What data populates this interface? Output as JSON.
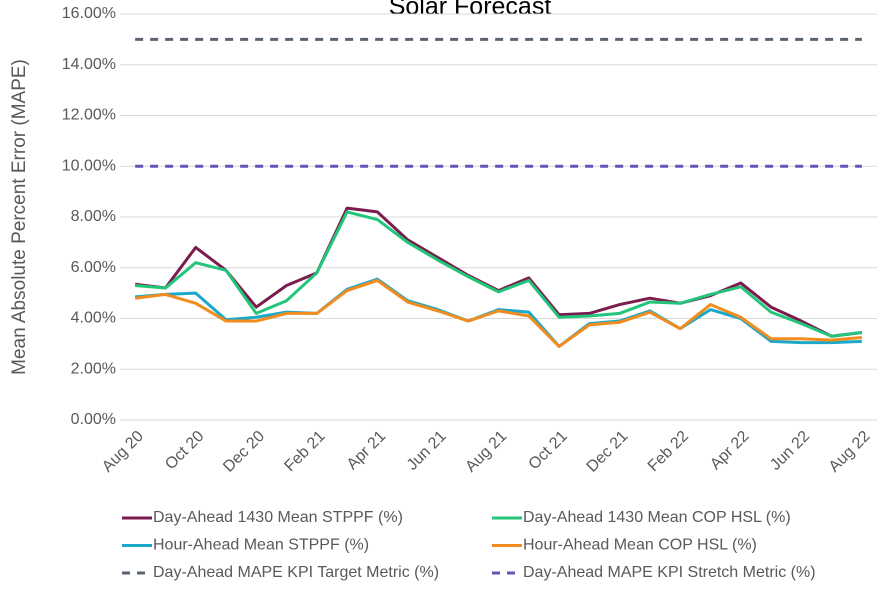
{
  "chart_data": {
    "type": "line",
    "title": "Solar Forecast",
    "y_label": "Mean Absolute Percent Error (MAPE)",
    "categories": [
      "Aug 20",
      null,
      "Oct 20",
      null,
      "Dec 20",
      null,
      "Feb 21",
      null,
      "Apr 21",
      null,
      "Jun 21",
      null,
      "Aug 21",
      null,
      "Oct 21",
      null,
      "Dec 21",
      null,
      "Feb 22",
      null,
      "Apr 22",
      null,
      "Jun 22",
      null,
      "Aug 22"
    ],
    "ylim": [
      0,
      16
    ],
    "yticks": [
      {
        "value": 0,
        "label": "0.00%"
      },
      {
        "value": 2,
        "label": "2.00%"
      },
      {
        "value": 4,
        "label": "4.00%"
      },
      {
        "value": 6,
        "label": "6.00%"
      },
      {
        "value": 8,
        "label": "8.00%"
      },
      {
        "value": 10,
        "label": "10.00%"
      },
      {
        "value": 12,
        "label": "12.00%"
      },
      {
        "value": 14,
        "label": "14.00%"
      },
      {
        "value": 16,
        "label": "16.00%"
      }
    ],
    "grid": true,
    "legend": "bottom",
    "series": [
      {
        "name": "Day-Ahead 1430 Mean STPPF (%)",
        "color": "#7b1c4e",
        "dashed": false,
        "values": [
          5.35,
          5.2,
          6.8,
          5.9,
          4.45,
          5.3,
          5.8,
          8.35,
          8.2,
          7.1,
          6.4,
          5.7,
          5.1,
          5.6,
          4.15,
          4.2,
          4.55,
          4.8,
          4.6,
          4.9,
          5.4,
          4.45,
          3.9,
          3.3,
          3.45
        ]
      },
      {
        "name": "Day-Ahead 1430 Mean COP HSL (%)",
        "color": "#22c57a",
        "dashed": false,
        "values": [
          5.3,
          5.2,
          6.2,
          5.9,
          4.2,
          4.7,
          5.8,
          8.2,
          7.9,
          7.0,
          6.3,
          5.65,
          5.05,
          5.5,
          4.05,
          4.1,
          4.2,
          4.65,
          4.6,
          4.95,
          5.25,
          4.25,
          3.8,
          3.3,
          3.45
        ]
      },
      {
        "name": "Hour-Ahead Mean STPPF (%)",
        "color": "#1ba8c9",
        "dashed": false,
        "values": [
          4.85,
          4.95,
          5.0,
          3.95,
          4.05,
          4.25,
          4.2,
          5.15,
          5.55,
          4.7,
          4.35,
          3.9,
          4.35,
          4.25,
          2.9,
          3.8,
          3.9,
          4.3,
          3.6,
          4.35,
          4.0,
          3.1,
          3.05,
          3.05,
          3.1
        ]
      },
      {
        "name": "Hour-Ahead Mean COP HSL (%)",
        "color": "#f28c1e",
        "dashed": false,
        "values": [
          4.8,
          4.95,
          4.6,
          3.9,
          3.9,
          4.2,
          4.2,
          5.1,
          5.5,
          4.65,
          4.3,
          3.9,
          4.3,
          4.1,
          2.9,
          3.75,
          3.85,
          4.25,
          3.6,
          4.55,
          4.05,
          3.2,
          3.2,
          3.15,
          3.25
        ]
      },
      {
        "name": "Day-Ahead MAPE KPI Target Metric (%)",
        "color": "#5a6470",
        "dashed": true,
        "values": [
          15,
          15,
          15,
          15,
          15,
          15,
          15,
          15,
          15,
          15,
          15,
          15,
          15,
          15,
          15,
          15,
          15,
          15,
          15,
          15,
          15,
          15,
          15,
          15,
          15
        ]
      },
      {
        "name": "Day-Ahead MAPE KPI Stretch Metric (%)",
        "color": "#6b52b8",
        "dashed": true,
        "values": [
          10,
          10,
          10,
          10,
          10,
          10,
          10,
          10,
          10,
          10,
          10,
          10,
          10,
          10,
          10,
          10,
          10,
          10,
          10,
          10,
          10,
          10,
          10,
          10,
          10
        ]
      }
    ]
  }
}
